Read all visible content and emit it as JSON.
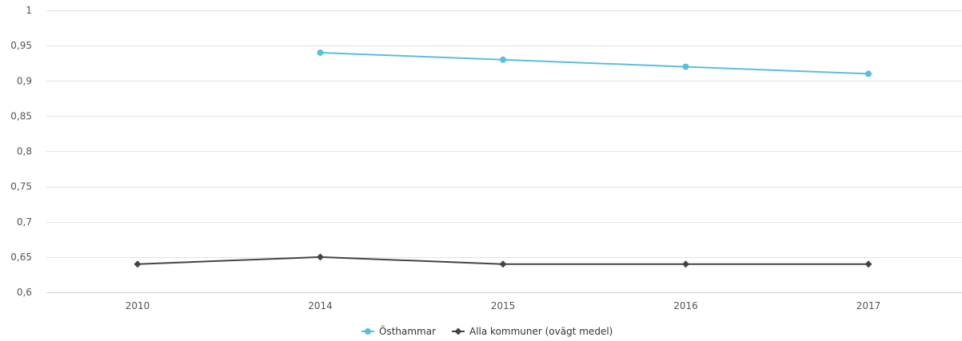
{
  "chart_data": {
    "type": "line",
    "categories": [
      "2010",
      "2014",
      "2015",
      "2016",
      "2017"
    ],
    "ylim": [
      0.6,
      1
    ],
    "yticks": [
      "0,6",
      "0,65",
      "0,7",
      "0,75",
      "0,8",
      "0,85",
      "0,9",
      "0,95",
      "1"
    ],
    "ytick_values": [
      0.6,
      0.65,
      0.7,
      0.75,
      0.8,
      0.85,
      0.9,
      0.95,
      1.0
    ],
    "grid": true,
    "legend_position": "bottom-center",
    "series": [
      {
        "name": "Östhammar",
        "color": "#5bbde0",
        "marker": "circle",
        "values": [
          null,
          0.94,
          0.93,
          0.92,
          0.91
        ]
      },
      {
        "name": "Alla kommuner (ovägt medel)",
        "color": "#444444",
        "marker": "diamond",
        "values": [
          0.64,
          0.65,
          0.64,
          0.64,
          0.64
        ]
      }
    ]
  }
}
